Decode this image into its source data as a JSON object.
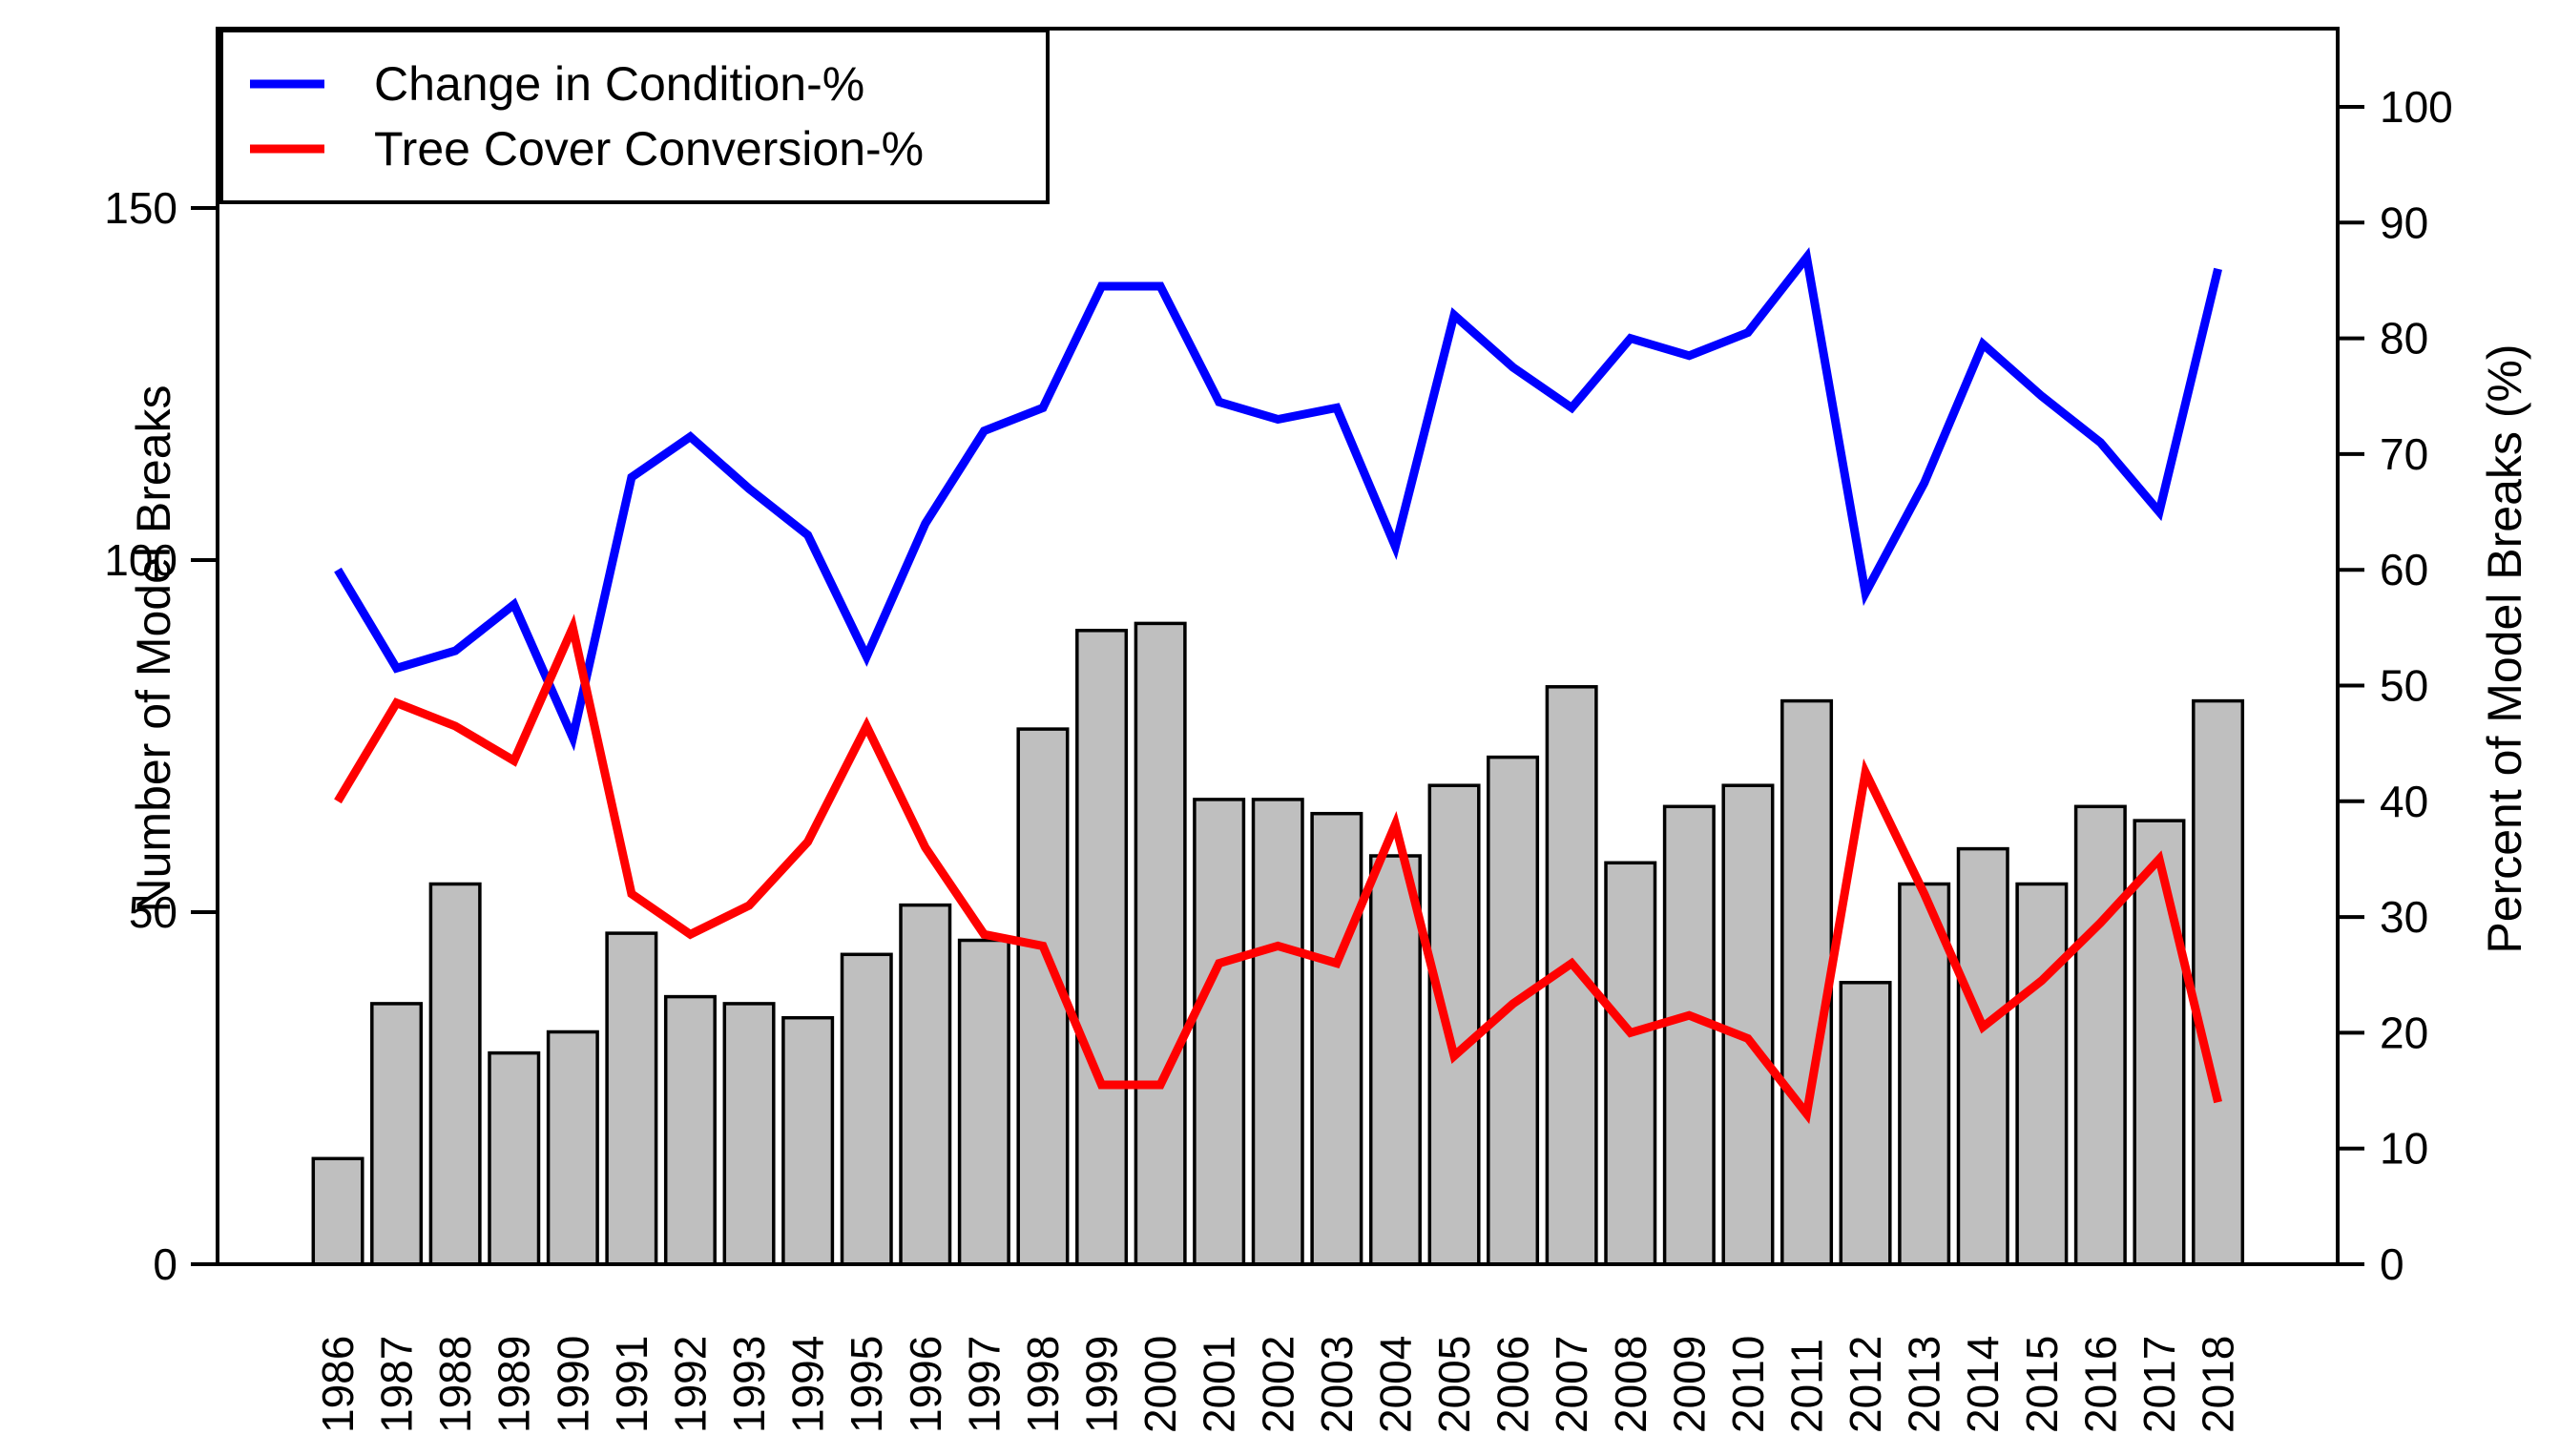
{
  "chart_data": {
    "type": "bar",
    "subtype": "dual-axis-bar-and-lines",
    "title": "",
    "categories": [
      "1986",
      "1987",
      "1988",
      "1989",
      "1990",
      "1991",
      "1992",
      "1993",
      "1994",
      "1995",
      "1996",
      "1997",
      "1998",
      "1999",
      "2000",
      "2001",
      "2002",
      "2003",
      "2004",
      "2005",
      "2006",
      "2007",
      "2008",
      "2009",
      "2010",
      "2011",
      "2012",
      "2013",
      "2014",
      "2015",
      "2016",
      "2017",
      "2018"
    ],
    "bar_series": {
      "name": "Number of Model Breaks",
      "axis": "left",
      "values": [
        15,
        37,
        54,
        30,
        33,
        47,
        38,
        37,
        35,
        44,
        51,
        46,
        76,
        90,
        91,
        66,
        66,
        64,
        58,
        68,
        72,
        82,
        57,
        65,
        68,
        80,
        40,
        54,
        59,
        54,
        65,
        63,
        80
      ],
      "fill_color": "#BFBFBF",
      "stroke_color": "#000000"
    },
    "line_series": [
      {
        "name": "Change in Condition-%",
        "axis": "right",
        "color": "#0000FF",
        "values": [
          60,
          51.5,
          53,
          57,
          45.5,
          68,
          71.5,
          67,
          63,
          52.5,
          64,
          72,
          74,
          84.5,
          84.5,
          74.5,
          73,
          74,
          62,
          82,
          77.5,
          74,
          80,
          78.5,
          80.5,
          87,
          58,
          67.5,
          79.5,
          75,
          71,
          65,
          86
        ]
      },
      {
        "name": "Tree Cover Conversion-%",
        "axis": "right",
        "color": "#FF0000",
        "values": [
          40,
          48.5,
          46.5,
          43.5,
          55,
          32,
          28.5,
          31,
          36.5,
          46.5,
          36,
          28.5,
          27.5,
          15.5,
          15.5,
          26,
          27.5,
          26,
          38,
          18,
          22.5,
          26,
          20,
          21.5,
          19.5,
          13,
          42.5,
          32,
          20.5,
          24.5,
          29.5,
          35,
          14
        ]
      }
    ],
    "left_axis": {
      "title": "Number of Model Breaks",
      "tick_values": [
        0,
        50,
        100,
        150
      ],
      "range": [
        0,
        175.5
      ],
      "grid": false
    },
    "right_axis": {
      "title": "Percent of Model Breaks (%)",
      "tick_values": [
        0,
        10,
        20,
        30,
        40,
        50,
        60,
        70,
        80,
        90,
        100
      ],
      "range": [
        0,
        106.8
      ],
      "grid": false
    },
    "x_axis": {
      "label": "",
      "tick_labels_rotated_degrees": 90
    },
    "legend": {
      "position": "top-left",
      "entries": [
        {
          "label": "Change in Condition-%",
          "color": "#0000FF",
          "shape": "line"
        },
        {
          "label": "Tree Cover Conversion-%",
          "color": "#FF0000",
          "shape": "line"
        }
      ]
    },
    "colors": {
      "bar_fill": "#BFBFBF",
      "bar_stroke": "#000000",
      "line1": "#0000FF",
      "line2": "#FF0000",
      "frame": "#000000",
      "background": "#FFFFFF"
    }
  }
}
